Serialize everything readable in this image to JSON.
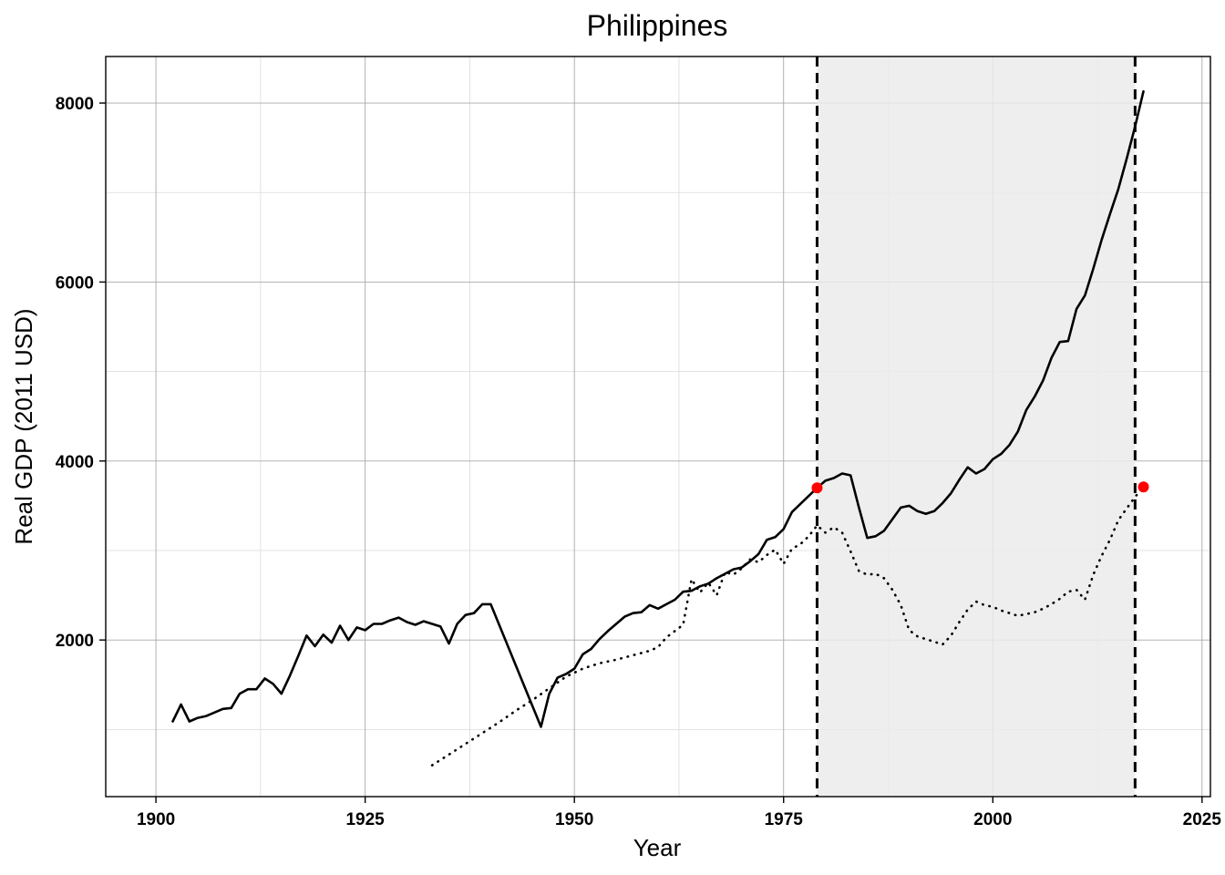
{
  "chart_data": {
    "type": "line",
    "title": "Philippines",
    "xlabel": "Year",
    "ylabel": "Real GDP (2011 USD)",
    "xlim": [
      1894,
      2026
    ],
    "ylim": [
      250,
      8520
    ],
    "x_ticks": [
      1900,
      1925,
      1950,
      1975,
      2000,
      2025
    ],
    "x_tick_labels": [
      "1900",
      "1925",
      "1950",
      "1975",
      "2000",
      "2025"
    ],
    "y_ticks": [
      2000,
      4000,
      6000,
      8000
    ],
    "y_tick_labels": [
      "2000",
      "4000",
      "6000",
      "8000"
    ],
    "grid": true,
    "shaded_region": {
      "x_start": 1979,
      "x_end": 2017,
      "color": "#ebebeb"
    },
    "vertical_lines": [
      {
        "x": 1979,
        "style": "dashed"
      },
      {
        "x": 2017,
        "style": "dashed"
      }
    ],
    "points": [
      {
        "x": 1979,
        "y": 3700,
        "color": "#ff0000"
      },
      {
        "x": 2018,
        "y": 3710,
        "color": "#ff0000"
      }
    ],
    "series": [
      {
        "style": "solid",
        "color": "#000000",
        "x": [
          1902,
          1903,
          1904,
          1905,
          1906,
          1907,
          1908,
          1909,
          1910,
          1911,
          1912,
          1913,
          1914,
          1915,
          1916,
          1917,
          1918,
          1919,
          1920,
          1921,
          1922,
          1923,
          1924,
          1925,
          1926,
          1927,
          1928,
          1929,
          1930,
          1931,
          1932,
          1933,
          1934,
          1935,
          1936,
          1937,
          1938,
          1939,
          1940,
          1946,
          1947,
          1948,
          1949,
          1950,
          1951,
          1952,
          1953,
          1954,
          1955,
          1956,
          1957,
          1958,
          1959,
          1960,
          1961,
          1962,
          1963,
          1964,
          1965,
          1966,
          1967,
          1968,
          1969,
          1970,
          1971,
          1972,
          1973,
          1974,
          1975,
          1976,
          1977,
          1978,
          1979,
          1980,
          1981,
          1982,
          1983,
          1984,
          1985,
          1986,
          1987,
          1988,
          1989,
          1990,
          1991,
          1992,
          1993,
          1994,
          1995,
          1996,
          1997,
          1998,
          1999,
          2000,
          2001,
          2002,
          2003,
          2004,
          2005,
          2006,
          2007,
          2008,
          2009,
          2010,
          2011,
          2012,
          2013,
          2014,
          2015,
          2016,
          2017,
          2018
        ],
        "y": [
          1090,
          1280,
          1090,
          1130,
          1150,
          1190,
          1230,
          1240,
          1400,
          1450,
          1450,
          1570,
          1510,
          1400,
          1600,
          1820,
          2050,
          1930,
          2060,
          1970,
          2160,
          2000,
          2140,
          2110,
          2180,
          2180,
          2220,
          2250,
          2200,
          2170,
          2210,
          2180,
          2150,
          1960,
          2180,
          2280,
          2300,
          2400,
          2400,
          1030,
          1400,
          1580,
          1620,
          1680,
          1840,
          1900,
          2010,
          2100,
          2180,
          2260,
          2300,
          2310,
          2390,
          2350,
          2400,
          2450,
          2540,
          2550,
          2600,
          2630,
          2690,
          2740,
          2790,
          2810,
          2880,
          2960,
          3120,
          3150,
          3240,
          3430,
          3520,
          3610,
          3700,
          3780,
          3810,
          3860,
          3840,
          3480,
          3140,
          3160,
          3220,
          3350,
          3480,
          3500,
          3440,
          3410,
          3440,
          3530,
          3640,
          3790,
          3930,
          3860,
          3910,
          4020,
          4080,
          4180,
          4330,
          4570,
          4720,
          4900,
          5150,
          5330,
          5340,
          5700,
          5850,
          6150,
          6470,
          6760,
          7040,
          7380,
          7740,
          8130
        ]
      },
      {
        "style": "dotted",
        "color": "#000000",
        "x": [
          1933,
          1935,
          1937,
          1939,
          1941,
          1943,
          1945,
          1947,
          1949,
          1951,
          1953,
          1955,
          1957,
          1959,
          1960,
          1961,
          1962,
          1963,
          1964,
          1965,
          1966,
          1967,
          1968,
          1969,
          1970,
          1971,
          1972,
          1973,
          1974,
          1975,
          1976,
          1977,
          1978,
          1979,
          1980,
          1981,
          1982,
          1983,
          1984,
          1985,
          1986,
          1987,
          1988,
          1989,
          1990,
          1991,
          1992,
          1993,
          1994,
          1995,
          1996,
          1997,
          1998,
          1999,
          2000,
          2001,
          2002,
          2003,
          2004,
          2005,
          2006,
          2007,
          2008,
          2009,
          2010,
          2011,
          2012,
          2013,
          2014,
          2015,
          2016,
          2017,
          2018
        ],
        "y": [
          600,
          720,
          840,
          960,
          1080,
          1210,
          1330,
          1460,
          1590,
          1680,
          1740,
          1780,
          1830,
          1880,
          1920,
          2030,
          2100,
          2170,
          2680,
          2530,
          2640,
          2500,
          2760,
          2730,
          2800,
          2900,
          2870,
          2950,
          3010,
          2850,
          3020,
          3070,
          3160,
          3280,
          3200,
          3260,
          3200,
          2990,
          2770,
          2730,
          2740,
          2690,
          2560,
          2390,
          2110,
          2040,
          2010,
          1980,
          1950,
          2050,
          2200,
          2340,
          2430,
          2390,
          2370,
          2330,
          2300,
          2270,
          2290,
          2310,
          2350,
          2400,
          2460,
          2540,
          2560,
          2450,
          2730,
          2940,
          3120,
          3340,
          3470,
          3600,
          3710
        ]
      }
    ]
  }
}
